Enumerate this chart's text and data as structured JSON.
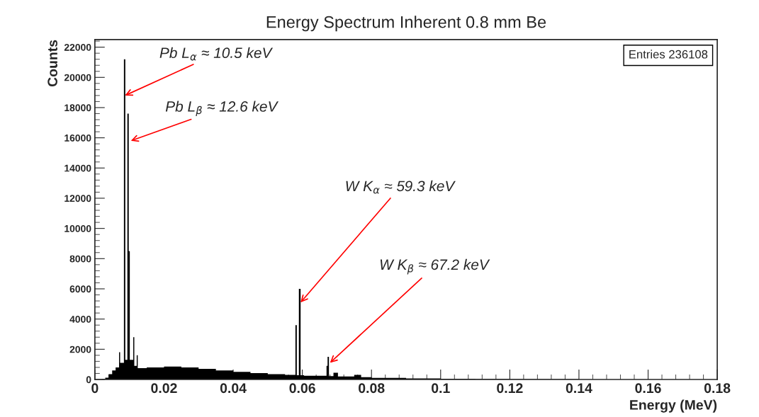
{
  "chart_data": {
    "type": "histogram",
    "title": "Energy Spectrum Inherent 0.8 mm Be",
    "xlabel": "Energy (MeV)",
    "ylabel": "Counts",
    "bins": [
      0,
      0.002,
      0.003,
      0.004,
      0.005,
      0.006,
      0.007,
      0.0073,
      0.0084,
      0.0088,
      0.0094,
      0.0098,
      0.0101,
      0.0111,
      0.0114,
      0.0121,
      0.0124,
      0.015,
      0.02,
      0.025,
      0.03,
      0.035,
      0.04,
      0.045,
      0.05,
      0.055,
      0.058,
      0.0584,
      0.059,
      0.0595,
      0.0605,
      0.067,
      0.0673,
      0.0677,
      0.069,
      0.0703,
      0.075,
      0.077,
      0.08,
      0.09,
      0.1,
      0.11,
      0.12,
      0.14,
      0.18
    ],
    "values": [
      0,
      20,
      120,
      350,
      600,
      800,
      1800,
      1100,
      21200,
      1300,
      17600,
      8500,
      1300,
      2800,
      900,
      1600,
      750,
      800,
      850,
      800,
      700,
      600,
      500,
      420,
      350,
      300,
      3600,
      280,
      6000,
      280,
      250,
      900,
      1500,
      220,
      450,
      200,
      300,
      150,
      100,
      70,
      50,
      40,
      20,
      0
    ],
    "color": "#000000",
    "xlim": [
      0,
      0.18
    ],
    "xticks": [
      0,
      0.02,
      0.04,
      0.06,
      0.08,
      0.1,
      0.12,
      0.14,
      0.16,
      0.18
    ],
    "ylim": [
      0,
      22500
    ],
    "yticks": [
      0,
      2000,
      4000,
      6000,
      8000,
      10000,
      12000,
      14000,
      16000,
      18000,
      20000,
      22000
    ],
    "grid": false,
    "legend": false,
    "annotations": [
      {
        "text": "Pb L$_{α}$ ≈ 10.5 keV",
        "x": 0.0087,
        "y": 18800
      },
      {
        "text": "Pb L$_{β}$ ≈ 12.6 keV",
        "x": 0.0104,
        "y": 15800
      },
      {
        "text": "W K$_{α}$ ≈ 59.3 keV",
        "x": 0.0595,
        "y": 5100
      },
      {
        "text": "W K$_{β}$ ≈ 67.2 keV",
        "x": 0.068,
        "y": 1100
      },
      "Entries 236108"
    ]
  }
}
